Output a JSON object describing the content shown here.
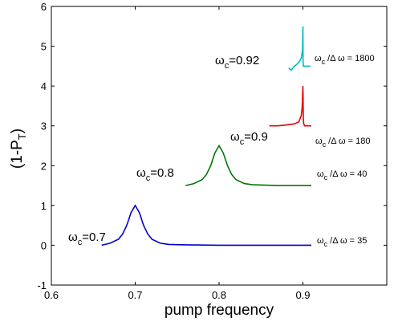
{
  "chart_data": {
    "type": "line",
    "xlabel": "pump frequency",
    "ylabel": "(1-P_T)",
    "xlim": [
      0.6,
      1.0
    ],
    "ylim": [
      -1,
      6
    ],
    "x_ticks": [
      0.6,
      0.7,
      0.8,
      0.9
    ],
    "y_ticks": [
      -1,
      0,
      1,
      2,
      3,
      4,
      5,
      6
    ],
    "grid": false,
    "legend": "none",
    "series": [
      {
        "color": "#0000cc",
        "label_main": "0.7",
        "label_ratio": "35",
        "x": [
          0.66,
          0.67,
          0.68,
          0.685,
          0.69,
          0.695,
          0.7,
          0.705,
          0.71,
          0.715,
          0.72,
          0.73,
          0.74,
          0.76,
          0.8,
          0.85,
          0.91
        ],
        "y": [
          0.0,
          0.05,
          0.15,
          0.28,
          0.5,
          0.82,
          1.0,
          0.82,
          0.5,
          0.28,
          0.15,
          0.05,
          0.02,
          0.01,
          0.0,
          0.0,
          0.0
        ]
      },
      {
        "color": "#007700",
        "label_main": "0.8",
        "label_ratio": "40",
        "x": [
          0.76,
          0.77,
          0.78,
          0.785,
          0.79,
          0.795,
          0.8,
          0.805,
          0.81,
          0.815,
          0.82,
          0.83,
          0.84,
          0.87,
          0.91
        ],
        "y": [
          1.5,
          1.55,
          1.65,
          1.78,
          2.0,
          2.32,
          2.5,
          2.32,
          2.0,
          1.78,
          1.65,
          1.55,
          1.52,
          1.5,
          1.5
        ]
      },
      {
        "color": "#ee0000",
        "label_main": "0.9",
        "label_ratio": "180",
        "x": [
          0.86,
          0.87,
          0.88,
          0.89,
          0.895,
          0.898,
          0.899,
          0.9,
          0.9005,
          0.901,
          0.902,
          0.905,
          0.91
        ],
        "y": [
          3.0,
          3.0,
          3.02,
          3.05,
          3.1,
          3.25,
          3.45,
          4.0,
          3.2,
          3.05,
          3.0,
          3.0,
          3.0
        ]
      },
      {
        "color": "#00bbbb",
        "label_main": "0.92",
        "label_ratio": "1800",
        "x": [
          0.883,
          0.886,
          0.889,
          0.893,
          0.896,
          0.898,
          0.8995,
          0.9,
          0.9002,
          0.9005,
          0.901,
          0.905,
          0.909
        ],
        "y": [
          4.45,
          4.4,
          4.48,
          4.55,
          4.62,
          4.7,
          4.9,
          5.5,
          4.6,
          4.5,
          4.5,
          4.5,
          4.5
        ]
      }
    ],
    "annotations": {
      "omega": "ω",
      "sub_c": "c",
      "ratio_prefix": "/Δ ω = "
    }
  }
}
